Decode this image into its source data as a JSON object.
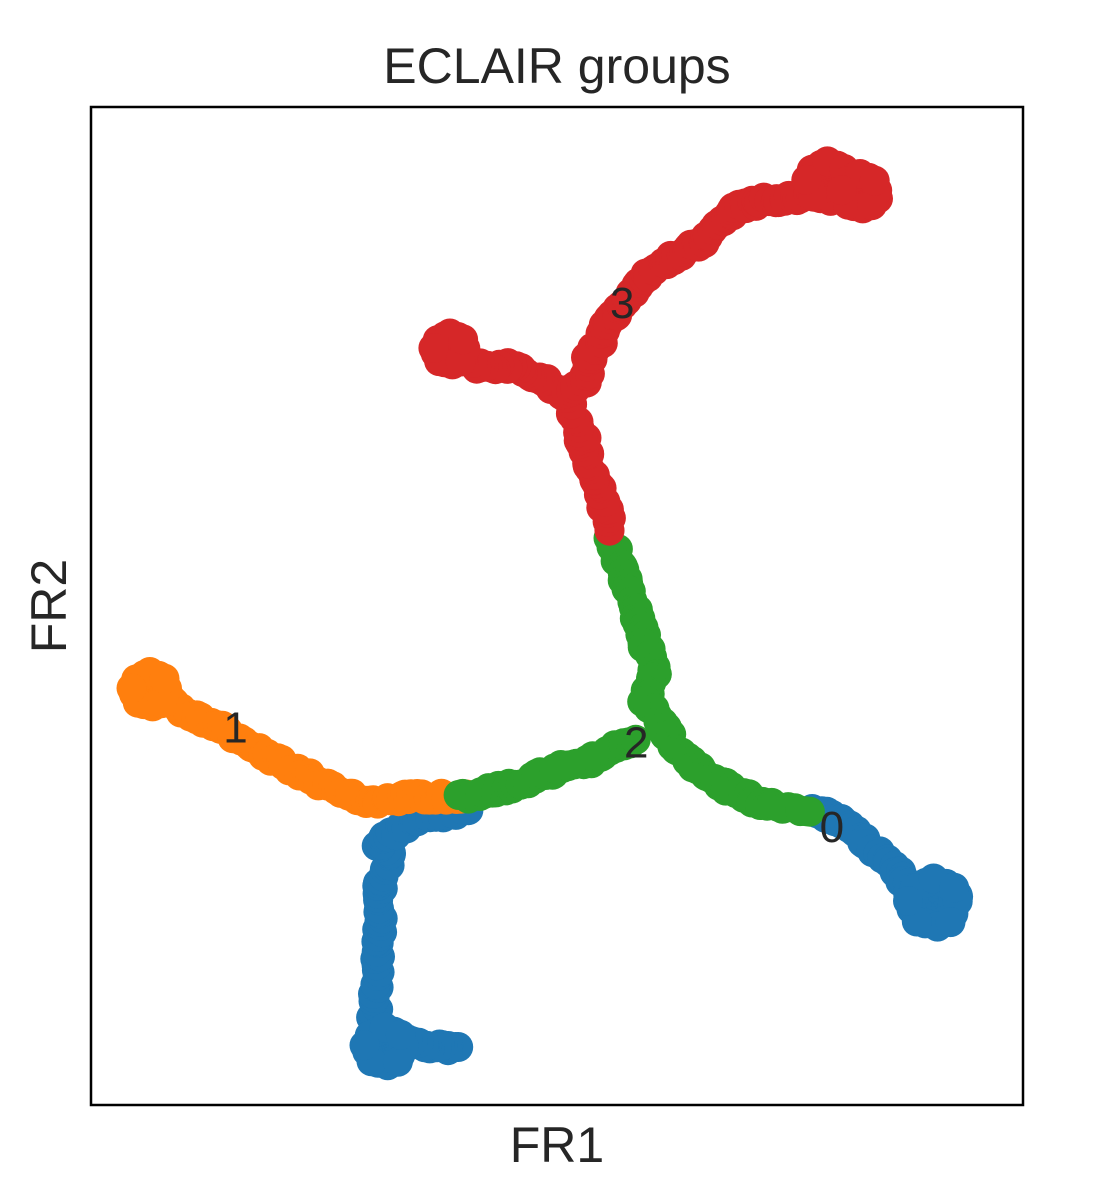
{
  "chart_data": {
    "type": "scatter",
    "title": "ECLAIR groups",
    "xlabel": "FR1",
    "ylabel": "FR2",
    "xlim": [
      0,
      100
    ],
    "ylim": [
      0,
      100
    ],
    "grid": false,
    "legend": "on data",
    "ticks": "none",
    "series": [
      {
        "name": "0",
        "color": "#1f77b4",
        "label_at": [
          79.5,
          27.5
        ],
        "paths": [
          [
            [
              39.5,
              5.5
            ],
            [
              30.4,
              7.0
            ],
            [
              30.5,
              12.0
            ],
            [
              31.0,
              17.5
            ],
            [
              31.1,
              22.5
            ],
            [
              32.4,
              25.0
            ],
            [
              31.0,
              26.3
            ],
            [
              35.0,
              28.6
            ],
            [
              40.2,
              29.5
            ]
          ],
          [
            [
              77.5,
              29.5
            ],
            [
              80.5,
              28.4
            ],
            [
              84.0,
              25.5
            ],
            [
              86.5,
              23.5
            ],
            [
              88.0,
              21.0
            ],
            [
              90.0,
              19.5
            ],
            [
              93.0,
              21.2
            ]
          ]
        ],
        "blobs": [
          [
            31.5,
            5.8,
            2.2
          ],
          [
            90.4,
            20.2,
            2.8
          ]
        ]
      },
      {
        "name": "1",
        "color": "#ff7f0e",
        "label_at": [
          15.5,
          37.5
        ],
        "paths": [
          [
            [
              6.5,
              41.5
            ],
            [
              10.0,
              39.5
            ],
            [
              14.0,
              37.8
            ],
            [
              18.0,
              35.5
            ],
            [
              22.0,
              33.5
            ],
            [
              25.5,
              32.0
            ],
            [
              29.5,
              30.3
            ],
            [
              34.0,
              30.8
            ],
            [
              40.0,
              31.0
            ]
          ]
        ],
        "blobs": [
          [
            6.3,
            41.6,
            2.0
          ]
        ]
      },
      {
        "name": "2",
        "color": "#2ca02c",
        "label_at": [
          58.5,
          36.0
        ],
        "paths": [
          [
            [
              39.8,
              30.8
            ],
            [
              45.0,
              32.0
            ],
            [
              50.0,
              33.5
            ],
            [
              55.0,
              35.0
            ],
            [
              58.5,
              36.8
            ]
          ],
          [
            [
              55.8,
              56.5
            ],
            [
              57.5,
              52.0
            ],
            [
              59.0,
              47.5
            ],
            [
              60.5,
              43.5
            ],
            [
              59.5,
              40.5
            ],
            [
              61.5,
              37.5
            ],
            [
              64.0,
              34.5
            ],
            [
              68.0,
              32.0
            ],
            [
              72.0,
              30.2
            ],
            [
              77.0,
              29.5
            ]
          ]
        ],
        "blobs": []
      },
      {
        "name": "3",
        "color": "#d62728",
        "label_at": [
          57.0,
          80.0
        ],
        "paths": [
          [
            [
              55.8,
              57.5
            ],
            [
              54.5,
              62.0
            ],
            [
              52.8,
              66.5
            ],
            [
              51.0,
              71.0
            ],
            [
              49.0,
              72.5
            ],
            [
              45.5,
              74.0
            ],
            [
              41.5,
              74.0
            ],
            [
              38.5,
              75.5
            ]
          ],
          [
            [
              51.0,
              71.0
            ],
            [
              53.0,
              72.5
            ],
            [
              53.5,
              75.0
            ],
            [
              56.0,
              79.0
            ],
            [
              59.0,
              82.5
            ],
            [
              62.0,
              84.8
            ],
            [
              65.5,
              86.5
            ],
            [
              68.5,
              89.5
            ],
            [
              71.5,
              90.5
            ],
            [
              75.5,
              91.0
            ],
            [
              79.0,
              91.5
            ],
            [
              84.5,
              91.0
            ]
          ]
        ],
        "blobs": [
          [
            38.5,
            75.7,
            1.8
          ],
          [
            79.0,
            92.5,
            2.3
          ],
          [
            82.5,
            91.5,
            2.0
          ]
        ]
      }
    ]
  }
}
